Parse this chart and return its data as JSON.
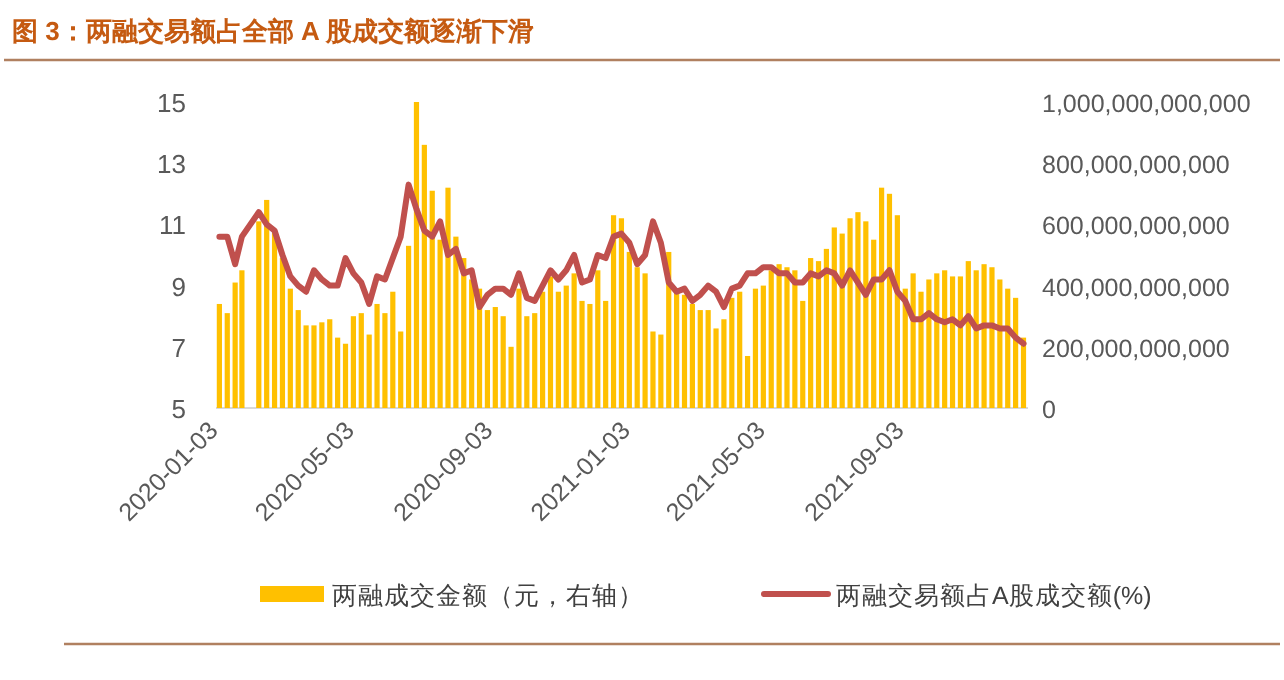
{
  "chart_data": {
    "type": "bar",
    "title": "图 3：两融交易额占全部 A 股成交额逐渐下滑",
    "x": [
      "2020-01-03",
      "2020-01-10",
      "2020-01-17",
      "2020-01-23",
      "2020-02-07",
      "2020-02-14",
      "2020-02-21",
      "2020-02-28",
      "2020-03-06",
      "2020-03-13",
      "2020-03-20",
      "2020-03-27",
      "2020-04-03",
      "2020-04-10",
      "2020-04-17",
      "2020-04-24",
      "2020-05-01",
      "2020-05-08",
      "2020-05-15",
      "2020-05-22",
      "2020-05-29",
      "2020-06-05",
      "2020-06-12",
      "2020-06-19",
      "2020-06-26",
      "2020-07-03",
      "2020-07-10",
      "2020-07-17",
      "2020-07-24",
      "2020-07-31",
      "2020-08-07",
      "2020-08-14",
      "2020-08-21",
      "2020-08-28",
      "2020-09-04",
      "2020-09-11",
      "2020-09-18",
      "2020-09-25",
      "2020-10-02",
      "2020-10-09",
      "2020-10-16",
      "2020-10-23",
      "2020-10-30",
      "2020-11-06",
      "2020-11-13",
      "2020-11-20",
      "2020-11-27",
      "2020-12-04",
      "2020-12-11",
      "2020-12-18",
      "2020-12-25",
      "2021-01-01",
      "2021-01-08",
      "2021-01-15",
      "2021-01-22",
      "2021-01-29",
      "2021-02-05",
      "2021-02-12",
      "2021-02-19",
      "2021-02-26",
      "2021-03-05",
      "2021-03-12",
      "2021-03-19",
      "2021-03-26",
      "2021-04-02",
      "2021-04-09",
      "2021-04-16",
      "2021-04-23",
      "2021-04-30",
      "2021-05-07",
      "2021-05-14",
      "2021-05-21",
      "2021-05-28",
      "2021-06-04",
      "2021-06-11",
      "2021-06-18",
      "2021-06-25",
      "2021-07-02",
      "2021-07-09",
      "2021-07-16",
      "2021-07-23",
      "2021-07-30",
      "2021-08-06",
      "2021-08-13",
      "2021-08-20",
      "2021-08-27",
      "2021-09-03",
      "2021-09-10",
      "2021-09-17",
      "2021-09-24",
      "2021-10-01",
      "2021-10-08",
      "2021-10-15",
      "2021-10-22",
      "2021-10-29",
      "2021-11-05",
      "2021-11-12",
      "2021-11-19",
      "2021-11-26",
      "2021-12-03",
      "2021-12-10",
      "2021-12-17"
    ],
    "series": [
      {
        "axis": "y2",
        "name": "两融成交金额（元，右轴）",
        "color": "#ffc000",
        "values": [
          340000000000.0,
          310000000000.0,
          410000000000.0,
          450000000000.0,
          610000000000.0,
          680000000000.0,
          580000000000.0,
          490000000000.0,
          390000000000.0,
          320000000000.0,
          270000000000.0,
          270000000000.0,
          280000000000.0,
          290000000000.0,
          230000000000.0,
          210000000000.0,
          300000000000.0,
          310000000000.0,
          240000000000.0,
          340000000000.0,
          310000000000.0,
          380000000000.0,
          250000000000.0,
          530000000000.0,
          1000000000000.0,
          860000000000.0,
          710000000000.0,
          550000000000.0,
          720000000000.0,
          560000000000.0,
          490000000000.0,
          420000000000.0,
          390000000000.0,
          320000000000.0,
          330000000000.0,
          300000000000.0,
          200000000000.0,
          390000000000.0,
          300000000000.0,
          310000000000.0,
          380000000000.0,
          430000000000.0,
          380000000000.0,
          400000000000.0,
          440000000000.0,
          350000000000.0,
          340000000000.0,
          450000000000.0,
          350000000000.0,
          630000000000.0,
          620000000000.0,
          510000000000.0,
          460000000000.0,
          440000000000.0,
          250000000000.0,
          240000000000.0,
          510000000000.0,
          390000000000.0,
          370000000000.0,
          340000000000.0,
          320000000000.0,
          320000000000.0,
          260000000000.0,
          290000000000.0,
          360000000000.0,
          380000000000.0,
          170000000000.0,
          390000000000.0,
          400000000000.0,
          450000000000.0,
          470000000000.0,
          460000000000.0,
          450000000000.0,
          350000000000.0,
          490000000000.0,
          480000000000.0,
          520000000000.0,
          590000000000.0,
          570000000000.0,
          620000000000.0,
          640000000000.0,
          610000000000.0,
          550000000000.0,
          720000000000.0,
          700000000000.0,
          630000000000.0,
          390000000000.0,
          440000000000.0,
          380000000000.0,
          420000000000.0,
          440000000000.0,
          450000000000.0,
          430000000000.0,
          430000000000.0,
          480000000000.0,
          450000000000.0,
          470000000000.0,
          460000000000.0,
          420000000000.0,
          390000000000.0,
          360000000000.0,
          230000000000.0
        ]
      },
      {
        "type": "line",
        "name": "两融交易额占A股成交额(%)",
        "color": "#c0504d",
        "values": [
          10.6,
          10.6,
          9.7,
          10.6,
          11.4,
          11.0,
          10.8,
          10.0,
          9.3,
          9.0,
          8.8,
          9.5,
          9.2,
          9.0,
          9.0,
          9.9,
          9.4,
          9.1,
          8.4,
          9.3,
          9.2,
          9.9,
          10.6,
          12.3,
          11.5,
          10.8,
          10.6,
          11.1,
          10.0,
          10.2,
          9.4,
          9.5,
          8.3,
          8.7,
          8.9,
          8.9,
          8.7,
          9.4,
          8.6,
          8.5,
          9.0,
          9.5,
          9.2,
          9.5,
          10.0,
          9.1,
          9.2,
          10.0,
          9.9,
          10.6,
          10.7,
          10.4,
          9.7,
          10.0,
          11.1,
          10.4,
          9.1,
          8.8,
          8.9,
          8.5,
          8.7,
          9.0,
          8.8,
          8.3,
          8.9,
          9.0,
          9.4,
          9.4,
          9.6,
          9.6,
          9.4,
          9.4,
          9.1,
          9.1,
          9.4,
          9.3,
          9.5,
          9.4,
          9.0,
          9.5,
          9.1,
          8.7,
          9.2,
          9.2,
          9.5,
          8.8,
          8.5,
          7.9,
          7.9,
          8.1,
          7.9,
          7.8,
          7.9,
          7.7,
          8.0,
          7.6,
          7.7,
          7.7,
          7.6,
          7.6,
          7.3,
          7.1
        ]
      }
    ],
    "xlim": [
      "2019-12-31",
      "2021-12-21"
    ],
    "xticks": [
      "2020-01-03",
      "2020-05-03",
      "2020-09-03",
      "2021-01-03",
      "2021-05-03",
      "2021-09-03"
    ],
    "ylim": [
      5,
      15
    ],
    "yticks": [
      5,
      7,
      9,
      11,
      13,
      15
    ],
    "y2lim": [
      0,
      1000000000000
    ],
    "y2ticks": [
      {
        "value": 0,
        "label": "0"
      },
      {
        "value": 200000000000,
        "label": "200,000,000,000"
      },
      {
        "value": 400000000000,
        "label": "400,000,000,000"
      },
      {
        "value": 600000000000,
        "label": "600,000,000,000"
      },
      {
        "value": 800000000000,
        "label": "800,000,000,000"
      },
      {
        "value": 1000000000000,
        "label": "1,000,000,000,000"
      }
    ],
    "legend": "bottom"
  }
}
